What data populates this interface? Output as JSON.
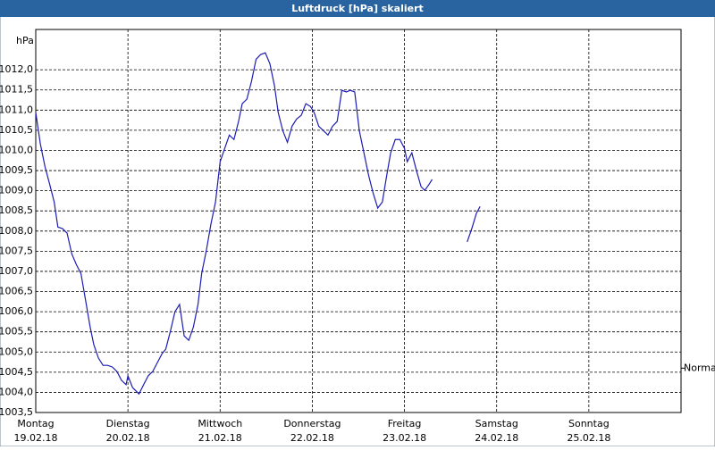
{
  "chart_data": {
    "type": "line",
    "title": "Luftdruck [hPa] skaliert",
    "y_unit": "hPa",
    "color": "#1c1cb4",
    "grid": true,
    "x": [
      0,
      0.05,
      0.1,
      0.15,
      0.2,
      0.24,
      0.29,
      0.34,
      0.39,
      0.44,
      0.49,
      0.54,
      0.59,
      0.63,
      0.68,
      0.73,
      0.78,
      0.83,
      0.88,
      0.93,
      0.98,
      1.0,
      1.05,
      1.12,
      1.17,
      1.22,
      1.27,
      1.32,
      1.37,
      1.41,
      1.46,
      1.51,
      1.56,
      1.61,
      1.66,
      1.71,
      1.76,
      1.8,
      1.85,
      1.9,
      1.95,
      2.0,
      2.05,
      2.1,
      2.15,
      2.2,
      2.24,
      2.29,
      2.34,
      2.39,
      2.44,
      2.49,
      2.54,
      2.59,
      2.63,
      2.68,
      2.73,
      2.78,
      2.83,
      2.88,
      2.93,
      2.98,
      3.02,
      3.07,
      3.12,
      3.17,
      3.22,
      3.27,
      3.32,
      3.37,
      3.41,
      3.46,
      3.51,
      3.56,
      3.61,
      3.66,
      3.71,
      3.76,
      3.8,
      3.85,
      3.9,
      3.95,
      4.0,
      4.03,
      4.08,
      4.13,
      4.18,
      4.22,
      4.27,
      4.3,
      4.5,
      4.68,
      4.73,
      4.78,
      4.82
    ],
    "values": [
      1010.94,
      1010.16,
      1009.6,
      1009.17,
      1008.72,
      1008.1,
      1008.06,
      1007.95,
      1007.44,
      1007.17,
      1006.95,
      1006.29,
      1005.62,
      1005.18,
      1004.85,
      1004.67,
      1004.67,
      1004.63,
      1004.52,
      1004.3,
      1004.19,
      1004.41,
      1004.12,
      1003.96,
      1004.19,
      1004.41,
      1004.52,
      1004.74,
      1004.96,
      1005.07,
      1005.51,
      1006.0,
      1006.18,
      1005.4,
      1005.29,
      1005.62,
      1006.18,
      1006.95,
      1007.51,
      1008.17,
      1008.72,
      1009.72,
      1010.05,
      1010.38,
      1010.27,
      1010.72,
      1011.16,
      1011.27,
      1011.71,
      1012.26,
      1012.38,
      1012.42,
      1012.15,
      1011.6,
      1010.94,
      1010.49,
      1010.2,
      1010.6,
      1010.78,
      1010.87,
      1011.16,
      1011.09,
      1010.94,
      1010.6,
      1010.49,
      1010.38,
      1010.6,
      1010.72,
      1011.49,
      1011.45,
      1011.49,
      1011.45,
      1010.49,
      1009.94,
      1009.39,
      1008.94,
      1008.57,
      1008.72,
      1009.28,
      1009.94,
      1010.27,
      1010.27,
      1010.05,
      1009.72,
      1009.94,
      1009.5,
      1009.1,
      1009.01,
      1009.17,
      1009.28,
      null,
      1007.73,
      1008.06,
      1008.44,
      1008.61
    ],
    "xlim": [
      0,
      7
    ],
    "xticks": [
      {
        "value": 0,
        "label": "Montag"
      },
      {
        "value": 1,
        "label": "Dienstag"
      },
      {
        "value": 2,
        "label": "Mittwoch"
      },
      {
        "value": 3,
        "label": "Donnerstag"
      },
      {
        "value": 4,
        "label": "Freitag"
      },
      {
        "value": 5,
        "label": "Samstag"
      },
      {
        "value": 6,
        "label": "Sonntag"
      }
    ],
    "xtick_dates": [
      "19.02.18",
      "20.02.18",
      "21.02.18",
      "22.02.18",
      "23.02.18",
      "24.02.18",
      "25.02.18"
    ],
    "ylim": [
      1003.5,
      1013.0
    ],
    "yticks": [
      {
        "value": 1003.5,
        "label": "1003,5"
      },
      {
        "value": 1004.0,
        "label": "1004,0"
      },
      {
        "value": 1004.5,
        "label": "1004,5"
      },
      {
        "value": 1005.0,
        "label": "1005,0"
      },
      {
        "value": 1005.5,
        "label": "1005,5"
      },
      {
        "value": 1006.0,
        "label": "1006,0"
      },
      {
        "value": 1006.5,
        "label": "1006,5"
      },
      {
        "value": 1007.0,
        "label": "1007,0"
      },
      {
        "value": 1007.5,
        "label": "1007,5"
      },
      {
        "value": 1008.0,
        "label": "1008,0"
      },
      {
        "value": 1008.5,
        "label": "1008,5"
      },
      {
        "value": 1009.0,
        "label": "1009,0"
      },
      {
        "value": 1009.5,
        "label": "1009,5"
      },
      {
        "value": 1010.0,
        "label": "1010,0"
      },
      {
        "value": 1010.5,
        "label": "1010,5"
      },
      {
        "value": 1011.0,
        "label": "1011,0"
      },
      {
        "value": 1011.5,
        "label": "1011,5"
      },
      {
        "value": 1012.0,
        "label": "1012,0"
      }
    ],
    "normal": {
      "label": "Normal",
      "value": 1004.6
    }
  }
}
